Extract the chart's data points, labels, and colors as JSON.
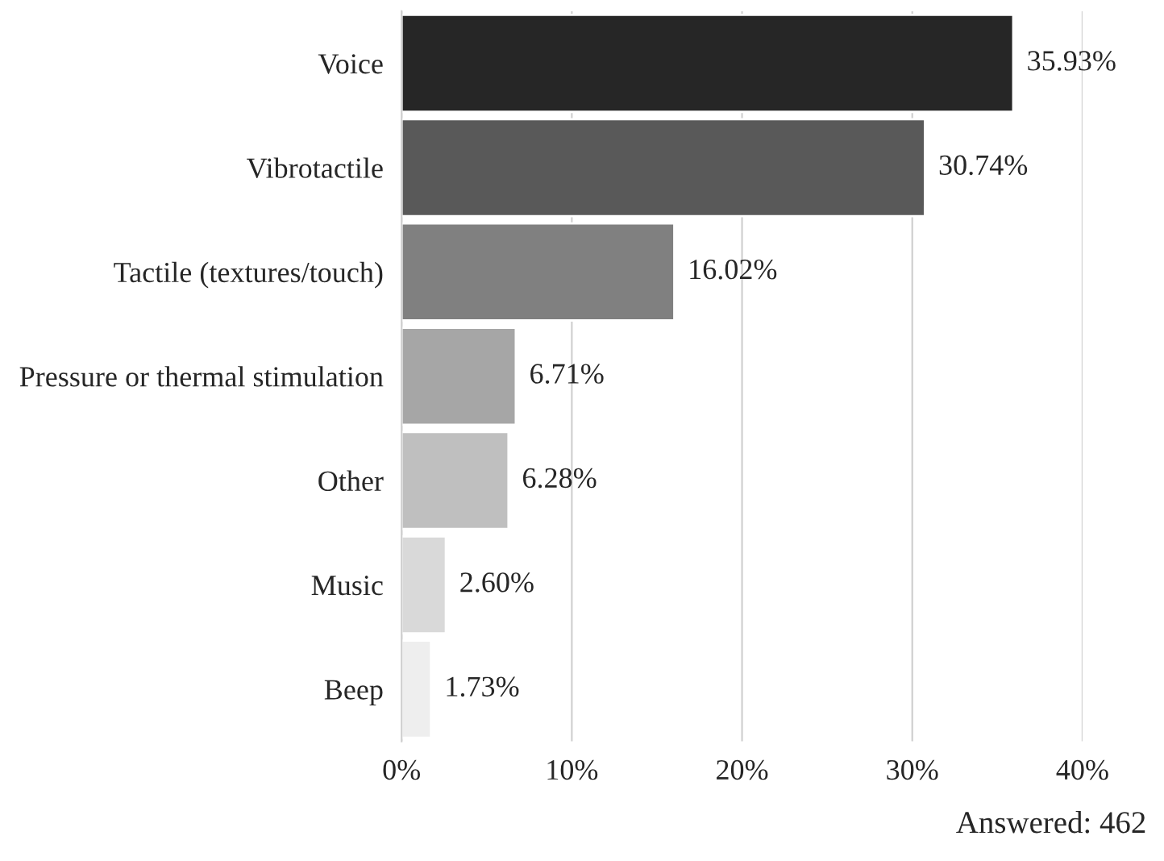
{
  "chart_data": {
    "type": "bar",
    "orientation": "horizontal",
    "categories": [
      "Voice",
      "Vibrotactile",
      "Tactile (textures/touch)",
      "Pressure or thermal stimulation",
      "Other",
      "Music",
      "Beep"
    ],
    "values": [
      35.93,
      30.74,
      16.02,
      6.71,
      6.28,
      2.6,
      1.73
    ],
    "value_labels": [
      "35.93%",
      "30.74%",
      "16.02%",
      "6.71%",
      "6.28%",
      "2.60%",
      "1.73%"
    ],
    "colors": [
      "#262626",
      "#595959",
      "#808080",
      "#a6a6a6",
      "#bfbfbf",
      "#d9d9d9",
      "#eeeeee"
    ],
    "xlim": [
      0,
      40
    ],
    "xticks": [
      {
        "value": 0,
        "label": "0%"
      },
      {
        "value": 10,
        "label": "10%"
      },
      {
        "value": 20,
        "label": "20%"
      },
      {
        "value": 30,
        "label": "30%"
      },
      {
        "value": 40,
        "label": "40%"
      }
    ],
    "grid": "x",
    "annotations": [
      "Answered: 462"
    ]
  }
}
